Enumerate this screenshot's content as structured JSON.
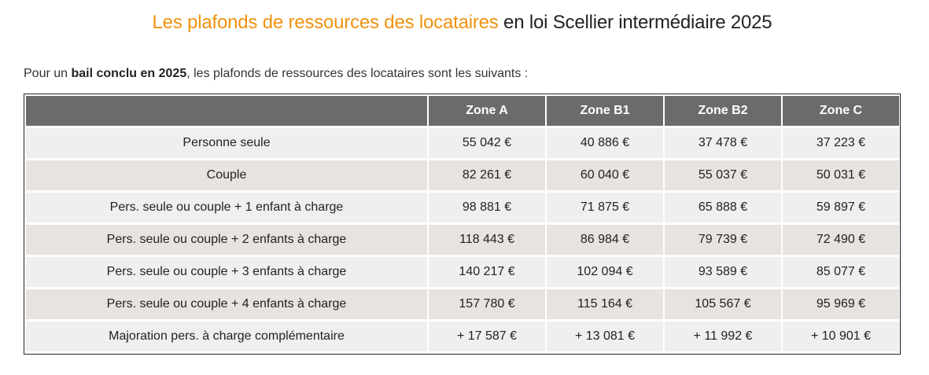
{
  "title": {
    "highlight": "Les plafonds de ressources des locataires",
    "rest": " en loi Scellier intermédiaire 2025"
  },
  "intro": {
    "before": "Pour un ",
    "bold": "bail conclu en 2025",
    "after": ", les plafonds de ressources des locataires sont les suivants :"
  },
  "table": {
    "headers": [
      "",
      "Zone A",
      "Zone B1",
      "Zone B2",
      "Zone C"
    ],
    "rows": [
      [
        "Personne seule",
        "55 042 €",
        "40 886 €",
        "37 478 €",
        "37 223 €"
      ],
      [
        "Couple",
        "82 261 €",
        "60 040 €",
        "55 037 €",
        "50 031 €"
      ],
      [
        "Pers. seule ou couple + 1 enfant à charge",
        "98 881 €",
        "71 875 €",
        "65 888 €",
        "59 897 €"
      ],
      [
        "Pers. seule ou couple + 2 enfants à charge",
        "118 443 €",
        "86 984 €",
        "79 739 €",
        "72 490 €"
      ],
      [
        "Pers. seule ou couple + 3 enfants à charge",
        "140 217 €",
        "102 094 €",
        "93 589 €",
        "85 077 €"
      ],
      [
        "Pers. seule ou couple + 4 enfants à charge",
        "157 780 €",
        "115 164 €",
        "105 567 €",
        "95 969 €"
      ],
      [
        "Majoration pers. à charge complémentaire",
        "+ 17 587 €",
        "+ 13 081 €",
        "+ 11 992 €",
        "+ 10 901 €"
      ]
    ]
  },
  "colors": {
    "accent": "#f0930f",
    "header_bg": "#6b6b6b",
    "row_odd": "#efefef",
    "row_even": "#e7e3df"
  }
}
